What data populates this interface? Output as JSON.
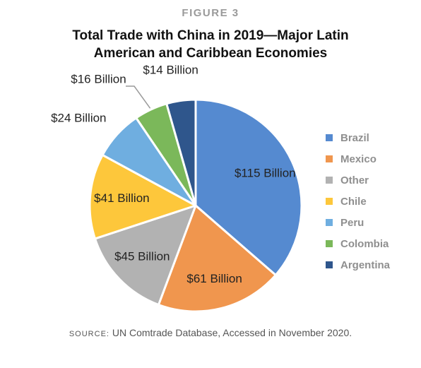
{
  "figure_label": "FIGURE 3",
  "title_line1": "Total Trade with China in 2019—Major Latin",
  "title_line2": "American and Caribbean Economies",
  "source_key": "SOURCE:",
  "source_text": " UN Comtrade Database, Accessed in November 2020.",
  "chart_data": {
    "type": "pie",
    "title": "Total Trade with China in 2019—Major Latin American and Caribbean Economies",
    "unit": "Billion USD",
    "legend_position": "right",
    "slices": [
      {
        "name": "Brazil",
        "value": 115,
        "label": "$115 Billion",
        "color": "#558ad0"
      },
      {
        "name": "Mexico",
        "value": 61,
        "label": "$61 Billion",
        "color": "#f0964e"
      },
      {
        "name": "Other",
        "value": 45,
        "label": "$45 Billion",
        "color": "#b2b2b2"
      },
      {
        "name": "Chile",
        "value": 41,
        "label": "$41 Billion",
        "color": "#fdc73b"
      },
      {
        "name": "Peru",
        "value": 24,
        "label": "$24 Billion",
        "color": "#6faee0"
      },
      {
        "name": "Colombia",
        "value": 16,
        "label": "$16 Billion",
        "color": "#7bb85a"
      },
      {
        "name": "Argentina",
        "value": 14,
        "label": "$14 Billion",
        "color": "#2f568c"
      }
    ]
  }
}
